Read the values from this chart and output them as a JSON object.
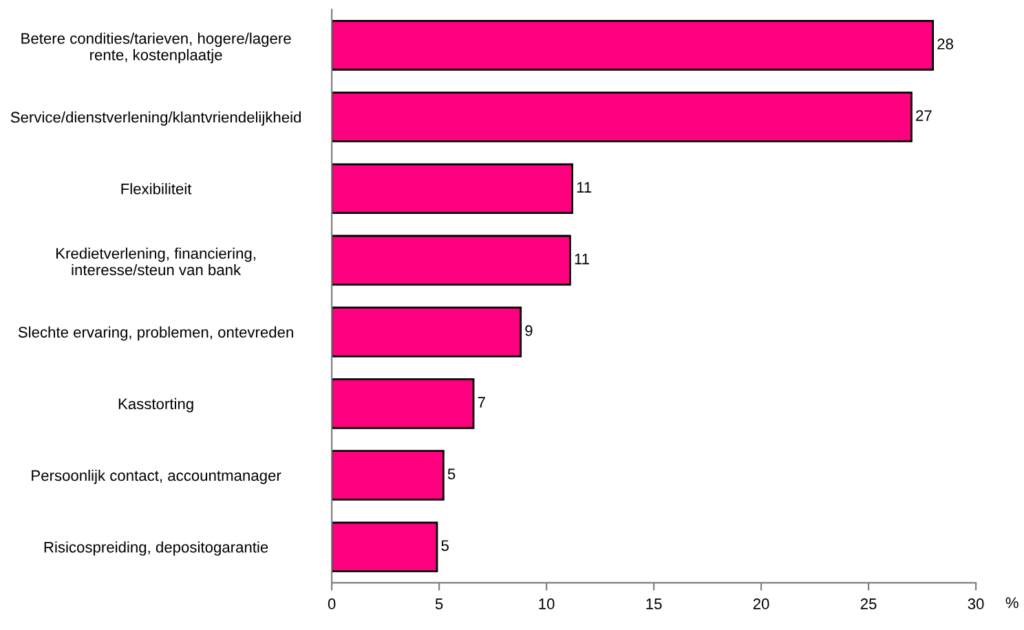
{
  "chart_data": {
    "type": "bar",
    "orientation": "horizontal",
    "xlabel": "%",
    "categories": [
      "Betere condities/tarieven, hogere/lagere\nrente, kostenplaatje",
      "Service/dienstverlening/klantvriendelijkheid",
      "Flexibiliteit",
      "Kredietverlening, financiering,\ninteresse/steun van bank",
      "Slechte ervaring, problemen, ontevreden",
      "Kasstorting",
      "Persoonlijk contact, accountmanager",
      "Risicospreiding, depositogarantie"
    ],
    "values": [
      28.0,
      27.0,
      11.2,
      11.1,
      8.8,
      6.6,
      5.2,
      4.9
    ],
    "value_labels": [
      "28",
      "27",
      "11",
      "11",
      "9",
      "7",
      "5",
      "5"
    ],
    "color": "#ff0080",
    "xlim": [
      0,
      30
    ],
    "xticks": [
      0,
      5,
      10,
      15,
      20,
      25,
      30
    ],
    "grid": false,
    "legend": false
  }
}
